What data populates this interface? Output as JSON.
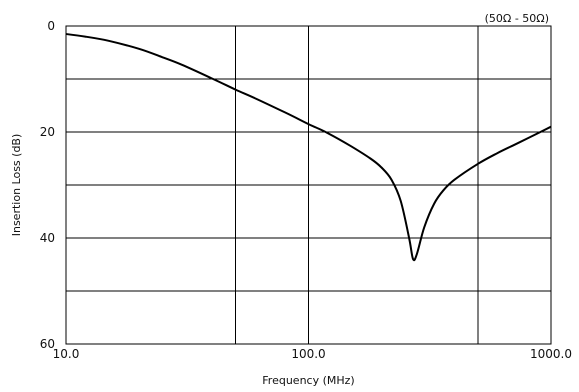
{
  "chart_data": {
    "type": "line",
    "title": "",
    "annotation": "(50Ω - 50Ω)",
    "xlabel": "Frequency (MHz)",
    "ylabel": "Insertion Loss (dB)",
    "x_scale": "log",
    "xlim": [
      10,
      1000
    ],
    "ylim": [
      0,
      60
    ],
    "y_inverted": true,
    "grid": true,
    "x_tick_labels": [
      {
        "value": 10,
        "label": "10.0"
      },
      {
        "value": 100,
        "label": "100.0"
      },
      {
        "value": 1000,
        "label": "1000.0"
      }
    ],
    "x_gridlines": [
      50,
      100,
      500
    ],
    "y_tick_labels": [
      {
        "value": 0,
        "label": "0"
      },
      {
        "value": 20,
        "label": "20"
      },
      {
        "value": 40,
        "label": "40"
      },
      {
        "value": 60,
        "label": "60"
      }
    ],
    "y_gridlines": [
      10,
      20,
      30,
      40,
      50
    ],
    "series": [
      {
        "color": "#000000",
        "x": [
          10,
          12,
          15,
          20,
          25,
          30,
          40,
          50,
          60,
          80,
          100,
          120,
          150,
          180,
          200,
          220,
          240,
          260,
          270,
          280,
          300,
          330,
          360,
          400,
          500,
          600,
          700,
          800,
          1000
        ],
        "y": [
          1.5,
          2.0,
          2.8,
          4.3,
          5.9,
          7.3,
          9.9,
          12.0,
          13.6,
          16.3,
          18.5,
          20.2,
          22.7,
          25.0,
          26.7,
          29.0,
          33.0,
          40.0,
          44.0,
          43.0,
          38.0,
          33.5,
          31.0,
          29.0,
          26.0,
          24.0,
          22.5,
          21.2,
          19.0
        ]
      }
    ]
  }
}
